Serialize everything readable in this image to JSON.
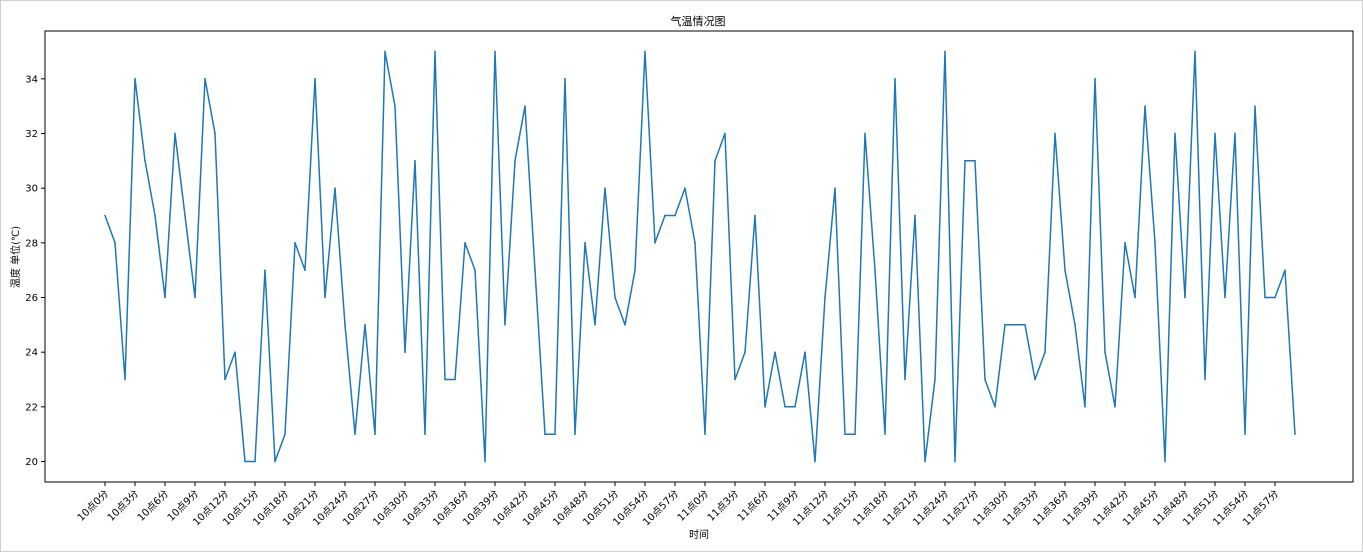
{
  "chart_data": {
    "type": "line",
    "title": "气温情况图",
    "xlabel": "时间",
    "ylabel": "温度 单位(℃)",
    "ylim": [
      19.25,
      35.75
    ],
    "yticks": [
      20,
      22,
      24,
      26,
      28,
      30,
      32,
      34
    ],
    "grid": false,
    "line_color": "#1f77b4",
    "x_tick_labels": [
      "10点0分",
      "10点3分",
      "10点6分",
      "10点9分",
      "10点12分",
      "10点15分",
      "10点18分",
      "10点21分",
      "10点24分",
      "10点27分",
      "10点30分",
      "10点33分",
      "10点36分",
      "10点39分",
      "10点42分",
      "10点45分",
      "10点48分",
      "10点51分",
      "10点54分",
      "10点57分",
      "11点0分",
      "11点3分",
      "11点6分",
      "11点9分",
      "11点12分",
      "11点15分",
      "11点18分",
      "11点21分",
      "11点24分",
      "11点27分",
      "11点30分",
      "11点33分",
      "11点36分",
      "11点39分",
      "11点42分",
      "11点45分",
      "11点48分",
      "11点51分",
      "11点54分",
      "11点57分"
    ],
    "series": [
      {
        "values": [
          29,
          28,
          23,
          34,
          31,
          29,
          26,
          32,
          29,
          26,
          34,
          32,
          23,
          24,
          20,
          20,
          27,
          20,
          21,
          28,
          27,
          34,
          26,
          30,
          25,
          21,
          25,
          21,
          35,
          33,
          24,
          31,
          21,
          35,
          23,
          23,
          28,
          27,
          20,
          35,
          25,
          31,
          33,
          27,
          21,
          21,
          34,
          21,
          28,
          25,
          30,
          26,
          25,
          27,
          35,
          28,
          29,
          29,
          30,
          28,
          21,
          31,
          32,
          23,
          24,
          29,
          22,
          24,
          22,
          22,
          24,
          20,
          26,
          30,
          21,
          21,
          32,
          27,
          21,
          34,
          23,
          29,
          20,
          23,
          35,
          20,
          31,
          31,
          23,
          22,
          25,
          25,
          25,
          23,
          24,
          32,
          27,
          25,
          22,
          34,
          24,
          22,
          28,
          26,
          33,
          28,
          20,
          32,
          26,
          35,
          23,
          32,
          26,
          32,
          21,
          33,
          26,
          26,
          27,
          21
        ]
      }
    ]
  }
}
